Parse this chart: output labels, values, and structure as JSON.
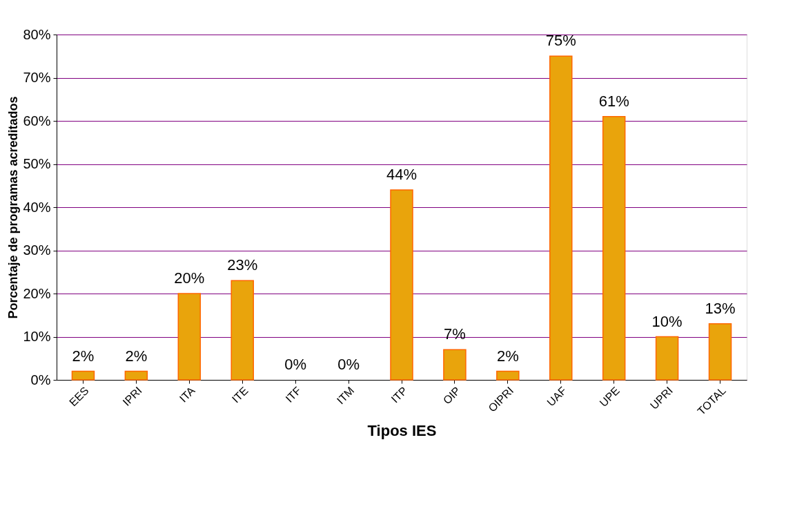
{
  "chart_data": {
    "type": "bar",
    "xlabel": "Tipos IES",
    "ylabel": "Porcentaje de programas acreditados",
    "categories": [
      "EES",
      "IPRI",
      "ITA",
      "ITE",
      "ITF",
      "ITM",
      "ITP",
      "OIP",
      "OIPRI",
      "UAF",
      "UPE",
      "UPRI",
      "TOTAL"
    ],
    "values": [
      2,
      2,
      20,
      23,
      0,
      0,
      44,
      7,
      2,
      75,
      61,
      10,
      13
    ],
    "value_labels": [
      "2%",
      "2%",
      "20%",
      "23%",
      "0%",
      "0%",
      "44%",
      "7%",
      "2%",
      "75%",
      "61%",
      "10%",
      "13%"
    ],
    "color": "#e9a40c",
    "ylim": [
      0,
      80
    ],
    "yticks": [
      {
        "value": 0,
        "label": "0%"
      },
      {
        "value": 10,
        "label": "10%"
      },
      {
        "value": 20,
        "label": "20%"
      },
      {
        "value": 30,
        "label": "30%"
      },
      {
        "value": 40,
        "label": "40%"
      },
      {
        "value": 50,
        "label": "50%"
      },
      {
        "value": 60,
        "label": "60%"
      },
      {
        "value": 70,
        "label": "70%"
      },
      {
        "value": 80,
        "label": "80%"
      }
    ],
    "grid": "y"
  }
}
